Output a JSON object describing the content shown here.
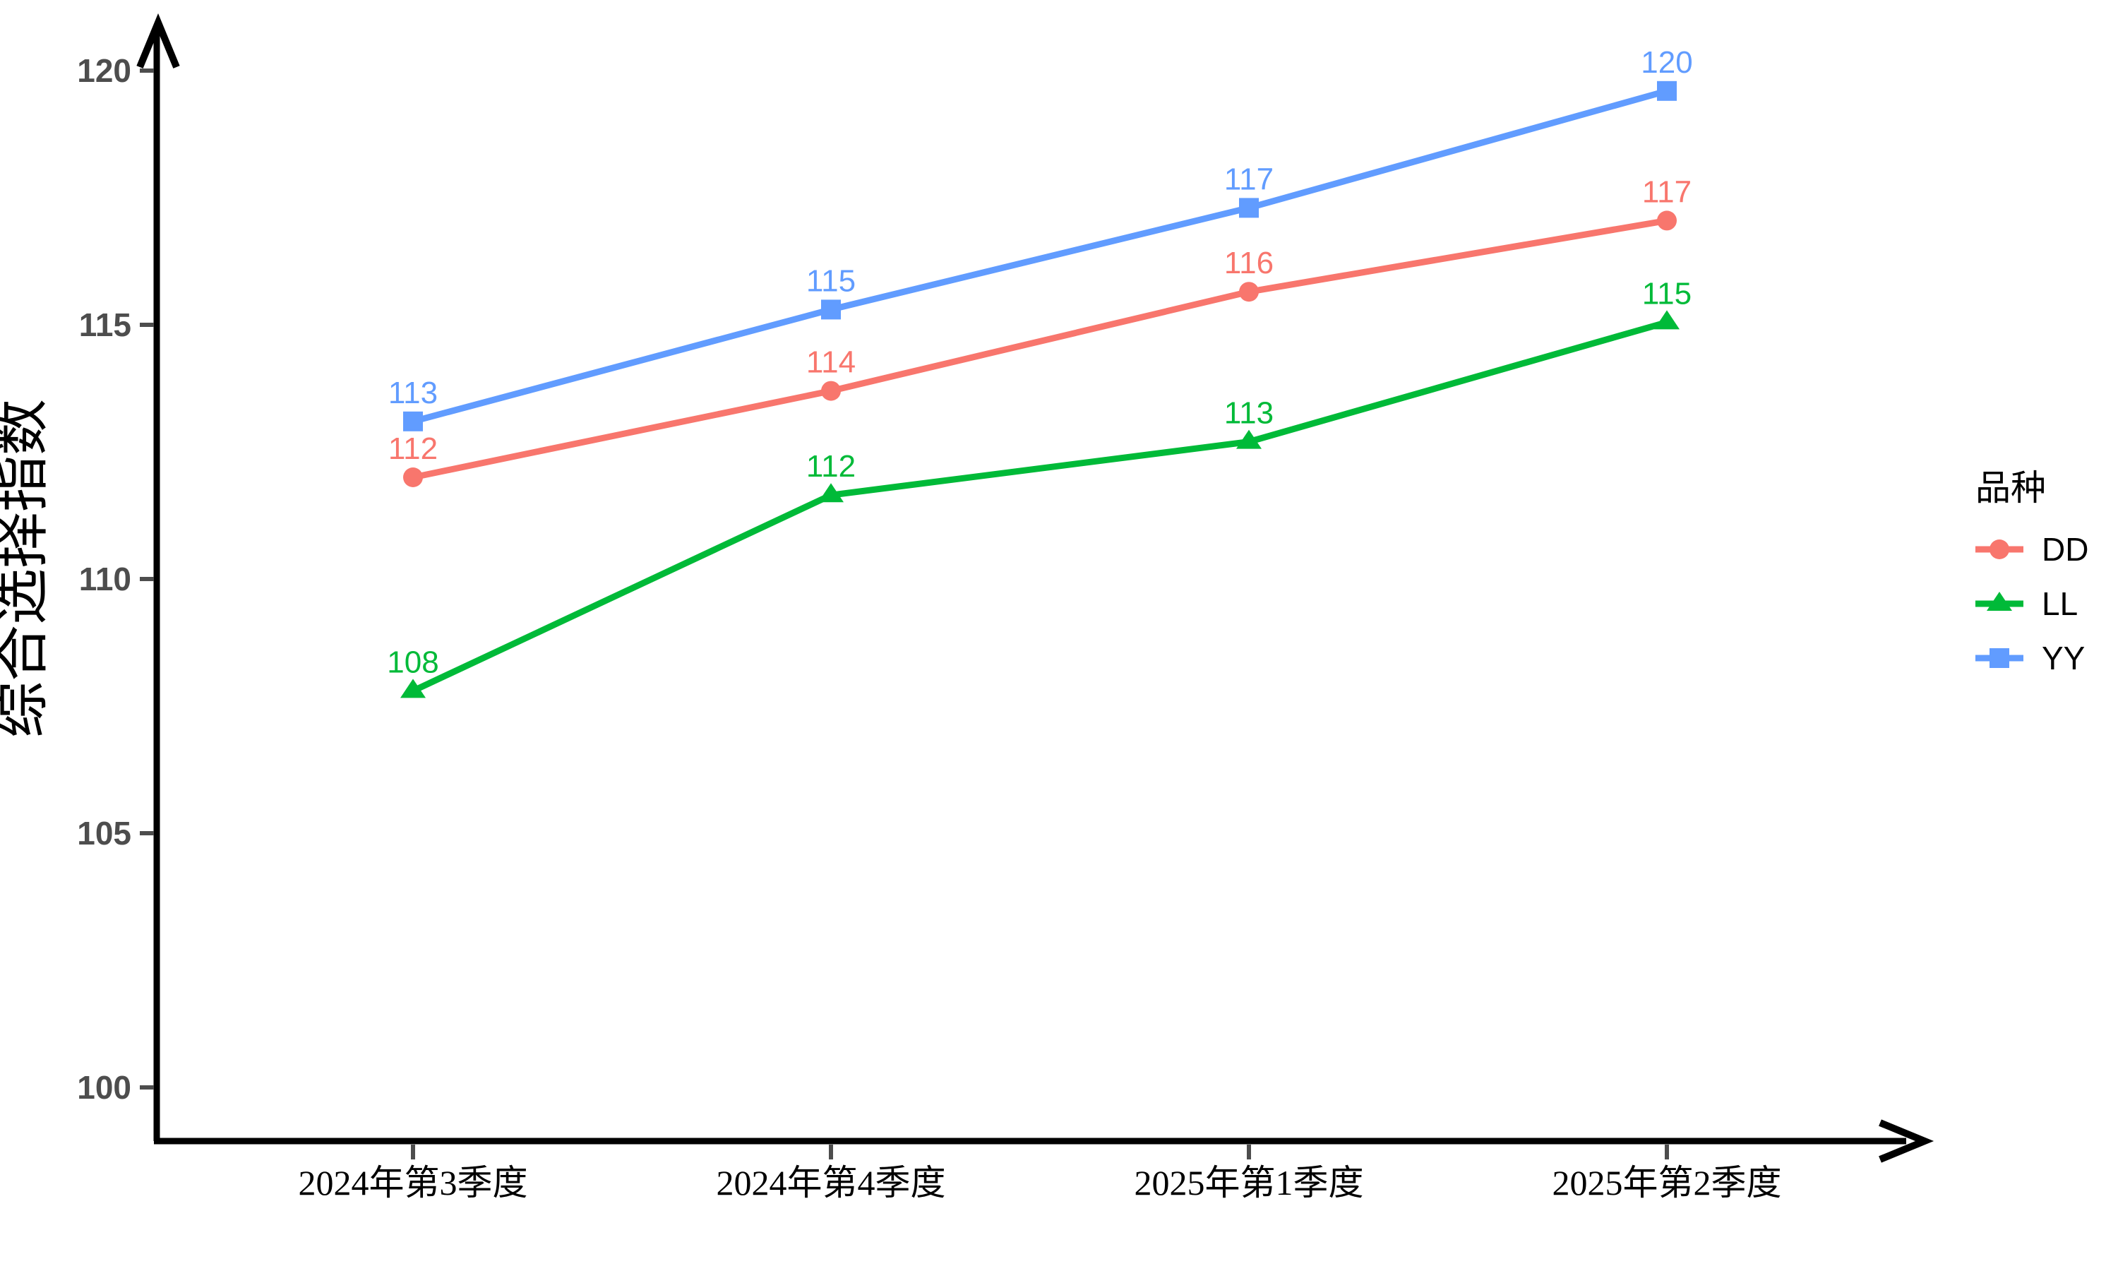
{
  "figure": {
    "background": "#ffffff",
    "axis_color": "#000000",
    "tick_mark_color": "#4d4d4d",
    "ytick_label_color": "#4d4d4d",
    "xtick_label_color": "#000000"
  },
  "chart_data": {
    "type": "line",
    "title": "",
    "xlabel": "",
    "ylabel": "综合选择指数",
    "categories": [
      "2024年第3季度",
      "2024年第4季度",
      "2025年第1季度",
      "2025年第2季度"
    ],
    "yticks": [
      "100",
      "105",
      "110",
      "115",
      "120"
    ],
    "ylim": [
      99.5,
      121
    ],
    "grid": false,
    "legend_title": "品种",
    "legend_position": "right",
    "series": [
      {
        "name": "DD",
        "color": "#F8766D",
        "marker": "circle",
        "values": [
          112.0,
          113.7,
          115.65,
          117.05
        ],
        "labels": [
          "112",
          "114",
          "116",
          "117"
        ]
      },
      {
        "name": "LL",
        "color": "#00BA38",
        "marker": "triangle",
        "values": [
          107.8,
          111.65,
          112.7,
          115.05
        ],
        "labels": [
          "108",
          "112",
          "113",
          "115"
        ]
      },
      {
        "name": "YY",
        "color": "#619CFF",
        "marker": "square",
        "values": [
          113.1,
          115.3,
          117.3,
          119.6
        ],
        "labels": [
          "113",
          "115",
          "117",
          "120"
        ]
      }
    ]
  }
}
